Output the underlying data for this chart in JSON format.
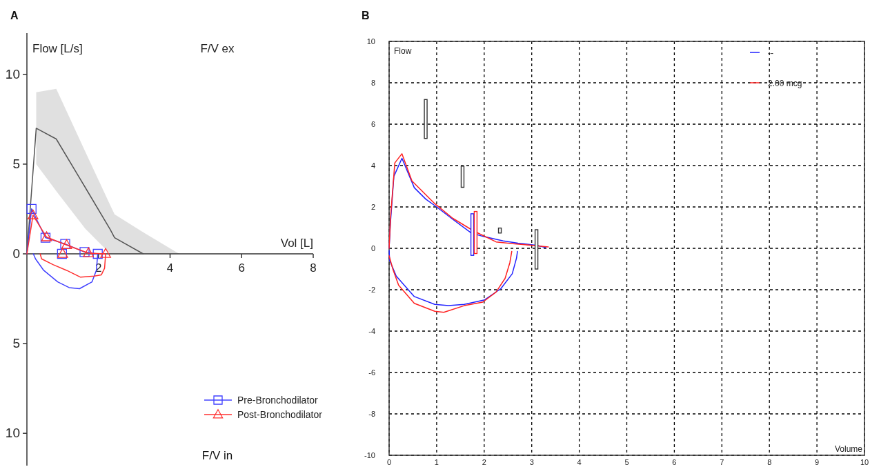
{
  "chart_data": [
    {
      "type": "line",
      "title": "F/V ex",
      "xlabel": "Vol [L]",
      "ylabel": "Flow [L/s]",
      "annotations": [
        "A",
        "F/V in"
      ],
      "xlim": [
        0,
        8
      ],
      "ylim": [
        -11.8,
        12.3
      ],
      "xticks": [
        2,
        4,
        6,
        8
      ],
      "yticks": [
        {
          "value": -10,
          "label": "10"
        },
        {
          "value": -5,
          "label": "5"
        },
        0,
        5,
        10
      ],
      "grid": false,
      "legend": "bottom right",
      "series": [
        {
          "color": "#555555",
          "x": [
            0,
            0.26,
            0.82,
            1.63,
            2.33,
            2.45,
            3.25,
            4.26
          ],
          "values": [
            0,
            7,
            6.4,
            3.7,
            1.35,
            0.9,
            0,
            null
          ],
          "lower": [
            null,
            5,
            3.5,
            1.4,
            0,
            0,
            0,
            0
          ],
          "upper": [
            null,
            9,
            9.2,
            5.7,
            2.7,
            2.2,
            1.2,
            0
          ]
        },
        {
          "color": "#4040ff",
          "x": [
            0,
            0.13
          ],
          "values": [
            0,
            2.5
          ]
        },
        {
          "color": "#4040ff",
          "x": [
            1.98,
            1.94,
            1.82,
            1.47,
            1.18,
            0.86,
            0.47,
            0.24,
            0.18
          ],
          "values": [
            0,
            -0.92,
            -1.56,
            -1.94,
            -1.88,
            -1.56,
            -0.92,
            -0.28,
            0
          ]
        },
        {
          "color": "#ff3030",
          "x": [
            0,
            0.17
          ],
          "values": [
            0,
            2.15
          ]
        },
        {
          "color": "#ff3030",
          "x": [
            2.2,
            2.17,
            2.08,
            1.88,
            1.5,
            1.11,
            0.73,
            0.41,
            0.37
          ],
          "values": [
            0,
            -0.8,
            -1.17,
            -1.24,
            -1.3,
            -0.92,
            -0.6,
            -0.28,
            0
          ]
        },
        {
          "type": "scatter",
          "marker": "square",
          "color": "#4040ff",
          "x": [
            0.98
          ],
          "values": [
            0
          ]
        },
        {
          "type": "scatter",
          "marker": "triangle",
          "color": "#ff3030",
          "x": [
            1.0
          ],
          "values": [
            0
          ]
        },
        {
          "name": "Pre-Bronchodilator",
          "marker": "square",
          "color": "#4040ff",
          "x": [
            0.13,
            0.52,
            1.07,
            1.61,
            1.98
          ],
          "values": [
            2.5,
            0.9,
            0.55,
            0.1,
            0
          ]
        },
        {
          "name": "Post-Bronchodilator",
          "marker": "triangle",
          "color": "#ff3030",
          "x": [
            0.17,
            0.55,
            1.11,
            1.72,
            2.2
          ],
          "values": [
            2.15,
            0.93,
            0.49,
            0.04,
            0
          ]
        }
      ]
    },
    {
      "type": "line",
      "xlabel": "Volume",
      "ylabel": "Flow",
      "annotations": [
        "B"
      ],
      "xlim": [
        0,
        10
      ],
      "ylim": [
        -10,
        10
      ],
      "xticks": [
        0,
        1,
        2,
        3,
        4,
        5,
        6,
        7,
        8,
        9,
        10
      ],
      "yticks": [
        -10,
        -8,
        -6,
        -4,
        -2,
        0,
        2,
        4,
        6,
        8,
        10
      ],
      "grid": true,
      "legend": "top right",
      "series": [
        {
          "name": "--",
          "color": "#2020ff",
          "x": [
            0,
            0.03,
            0.1,
            0.27,
            0.39,
            0.53,
            0.77,
            1.0,
            1.34,
            1.73,
            1.97,
            2.4,
            2.71,
            3.11,
            3.3
          ],
          "values": [
            0,
            1.29,
            3.48,
            4.35,
            3.69,
            2.93,
            2.38,
            2.0,
            1.4,
            0.74,
            0.58,
            0.36,
            0.25,
            0.14,
            0.03
          ]
        },
        {
          "color": "#2020ff",
          "x": [
            2.7,
            2.68,
            2.59,
            2.35,
            2.01,
            1.58,
            1.25,
            0.96,
            0.53,
            0.15,
            0.01,
            0
          ],
          "values": [
            -0.15,
            -0.47,
            -1.23,
            -1.95,
            -2.49,
            -2.71,
            -2.77,
            -2.71,
            -2.33,
            -1.34,
            -0.58,
            -0.1
          ]
        },
        {
          "name": "2.00 mcg",
          "color": "#ff2020",
          "x": [
            0,
            0.03,
            0.12,
            0.27,
            0.48,
            0.96,
            1.34,
            1.77,
            2.25,
            2.64,
            3.02,
            3.35
          ],
          "values": [
            0,
            1.5,
            4.13,
            4.57,
            3.26,
            2.16,
            1.45,
            0.85,
            0.31,
            0.22,
            0.14,
            0.07
          ]
        },
        {
          "color": "#ff2020",
          "x": [
            2.58,
            2.54,
            2.44,
            2.25,
            1.97,
            1.58,
            1.15,
            0.96,
            0.53,
            0.2,
            0.08,
            0
          ],
          "values": [
            -0.15,
            -0.69,
            -1.45,
            -2.11,
            -2.6,
            -2.77,
            -3.09,
            -3.04,
            -2.66,
            -1.78,
            -1.02,
            -0.36
          ]
        },
        {
          "type": "bar",
          "colors": [
            "#333333",
            "#333333",
            "#2020ff",
            "#ff2020",
            "#333333",
            "#333333"
          ],
          "x": [
            0.77,
            1.545,
            1.75,
            1.82,
            2.33,
            3.1
          ],
          "base": [
            5.31,
            2.95,
            -0.34,
            -0.25,
            0.74,
            -1.0
          ],
          "values": [
            1.88,
            1.02,
            2.01,
            2.03,
            0.24,
            1.9
          ]
        }
      ]
    }
  ]
}
